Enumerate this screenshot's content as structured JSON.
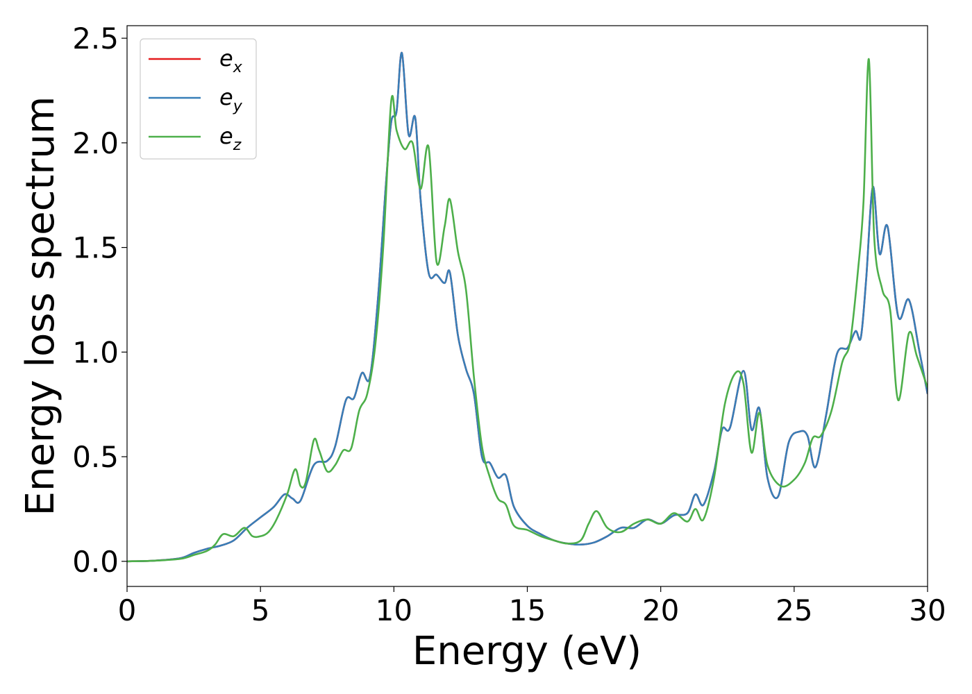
{
  "chart_data": {
    "type": "line",
    "xlabel": "Energy (eV)",
    "ylabel": "Energy loss spectrum",
    "xlim": [
      0,
      30
    ],
    "ylim": [
      -0.12,
      2.56
    ],
    "xticks": [
      0,
      5,
      10,
      15,
      20,
      25,
      30
    ],
    "xtick_labels": [
      "0",
      "5",
      "10",
      "15",
      "20",
      "25",
      "30"
    ],
    "yticks": [
      0.0,
      0.5,
      1.0,
      1.5,
      2.0,
      2.5
    ],
    "ytick_labels": [
      "0.0",
      "0.5",
      "1.0",
      "1.5",
      "2.0",
      "2.5"
    ],
    "grid": false,
    "legend_position": "top-left",
    "series": [
      {
        "name": "e",
        "sub": "x",
        "color": "#e41a1c",
        "x": [
          0,
          1,
          2,
          2.5,
          3,
          3.5,
          4,
          4.5,
          5,
          5.5,
          5.9,
          6.2,
          6.5,
          7,
          7.5,
          7.8,
          8.2,
          8.5,
          8.8,
          9.1,
          9.4,
          9.7,
          9.9,
          10.1,
          10.3,
          10.55,
          10.8,
          11,
          11.3,
          11.6,
          11.9,
          12.1,
          12.4,
          12.7,
          13,
          13.3,
          13.6,
          13.9,
          14.2,
          14.5,
          15,
          15.5,
          16,
          16.5,
          17,
          17.5,
          18,
          18.5,
          19,
          19.5,
          20,
          20.5,
          21,
          21.3,
          21.6,
          22,
          22.3,
          22.6,
          23.1,
          23.4,
          23.7,
          24,
          24.4,
          24.8,
          25.2,
          25.5,
          25.8,
          26.2,
          26.6,
          27,
          27.3,
          27.5,
          27.7,
          27.95,
          28.2,
          28.5,
          28.9,
          29.3,
          29.7,
          30
        ],
        "y": [
          0,
          0.003,
          0.015,
          0.04,
          0.06,
          0.075,
          0.1,
          0.16,
          0.21,
          0.26,
          0.32,
          0.3,
          0.29,
          0.46,
          0.48,
          0.55,
          0.77,
          0.78,
          0.9,
          0.88,
          1.25,
          1.8,
          2.1,
          2.15,
          2.43,
          2.04,
          2.12,
          1.73,
          1.38,
          1.37,
          1.33,
          1.38,
          1.08,
          0.92,
          0.8,
          0.5,
          0.47,
          0.4,
          0.41,
          0.26,
          0.17,
          0.13,
          0.1,
          0.085,
          0.08,
          0.09,
          0.12,
          0.16,
          0.16,
          0.2,
          0.18,
          0.22,
          0.23,
          0.32,
          0.27,
          0.43,
          0.63,
          0.64,
          0.91,
          0.63,
          0.73,
          0.4,
          0.31,
          0.57,
          0.62,
          0.6,
          0.45,
          0.7,
          0.99,
          1.02,
          1.1,
          1.07,
          1.35,
          1.79,
          1.47,
          1.6,
          1.17,
          1.25,
          1.0,
          0.8
        ]
      },
      {
        "name": "e",
        "sub": "y",
        "color": "#377eb8",
        "x": [
          0,
          1,
          2,
          2.5,
          3,
          3.5,
          4,
          4.5,
          5,
          5.5,
          5.9,
          6.2,
          6.5,
          7,
          7.5,
          7.8,
          8.2,
          8.5,
          8.8,
          9.1,
          9.4,
          9.7,
          9.9,
          10.1,
          10.3,
          10.55,
          10.8,
          11,
          11.3,
          11.6,
          11.9,
          12.1,
          12.4,
          12.7,
          13,
          13.3,
          13.6,
          13.9,
          14.2,
          14.5,
          15,
          15.5,
          16,
          16.5,
          17,
          17.5,
          18,
          18.5,
          19,
          19.5,
          20,
          20.5,
          21,
          21.3,
          21.6,
          22,
          22.3,
          22.6,
          23.1,
          23.4,
          23.7,
          24,
          24.4,
          24.8,
          25.2,
          25.5,
          25.8,
          26.2,
          26.6,
          27,
          27.3,
          27.5,
          27.7,
          27.95,
          28.2,
          28.5,
          28.9,
          29.3,
          29.7,
          30
        ],
        "y": [
          0,
          0.003,
          0.015,
          0.04,
          0.06,
          0.075,
          0.1,
          0.16,
          0.21,
          0.26,
          0.32,
          0.3,
          0.29,
          0.46,
          0.48,
          0.55,
          0.77,
          0.78,
          0.9,
          0.88,
          1.25,
          1.8,
          2.1,
          2.15,
          2.43,
          2.04,
          2.12,
          1.73,
          1.38,
          1.37,
          1.33,
          1.38,
          1.08,
          0.92,
          0.8,
          0.5,
          0.47,
          0.4,
          0.41,
          0.26,
          0.17,
          0.13,
          0.1,
          0.085,
          0.08,
          0.09,
          0.12,
          0.16,
          0.16,
          0.2,
          0.18,
          0.22,
          0.23,
          0.32,
          0.27,
          0.43,
          0.63,
          0.64,
          0.91,
          0.63,
          0.73,
          0.4,
          0.31,
          0.57,
          0.62,
          0.6,
          0.45,
          0.7,
          0.99,
          1.02,
          1.1,
          1.07,
          1.35,
          1.79,
          1.47,
          1.6,
          1.17,
          1.25,
          1.0,
          0.8
        ]
      },
      {
        "name": "e",
        "sub": "z",
        "color": "#4daf4a",
        "x": [
          0,
          1,
          2,
          2.5,
          3,
          3.3,
          3.6,
          4,
          4.4,
          4.7,
          5,
          5.3,
          5.6,
          6,
          6.3,
          6.5,
          6.7,
          7,
          7.2,
          7.5,
          7.8,
          8.1,
          8.4,
          8.7,
          9,
          9.3,
          9.6,
          9.9,
          10.1,
          10.4,
          10.7,
          11,
          11.3,
          11.6,
          11.9,
          12.1,
          12.4,
          12.7,
          13,
          13.3,
          13.6,
          13.9,
          14.2,
          14.5,
          15,
          15.5,
          16,
          16.5,
          17,
          17.3,
          17.6,
          18,
          18.5,
          19,
          19.5,
          20,
          20.5,
          21,
          21.3,
          21.6,
          22,
          22.4,
          22.8,
          23.1,
          23.4,
          23.7,
          24,
          24.5,
          25,
          25.4,
          25.7,
          26,
          26.4,
          26.8,
          27.1,
          27.4,
          27.6,
          27.8,
          28,
          28.3,
          28.6,
          28.9,
          29.3,
          29.6,
          30
        ],
        "y": [
          0,
          0.003,
          0.012,
          0.03,
          0.05,
          0.08,
          0.13,
          0.12,
          0.16,
          0.12,
          0.12,
          0.14,
          0.2,
          0.32,
          0.44,
          0.36,
          0.38,
          0.58,
          0.53,
          0.43,
          0.46,
          0.53,
          0.54,
          0.72,
          0.8,
          1.03,
          1.5,
          2.2,
          2.06,
          1.97,
          2.0,
          1.78,
          1.98,
          1.43,
          1.6,
          1.73,
          1.48,
          1.3,
          0.88,
          0.55,
          0.4,
          0.3,
          0.27,
          0.17,
          0.15,
          0.12,
          0.1,
          0.085,
          0.1,
          0.18,
          0.24,
          0.16,
          0.14,
          0.18,
          0.2,
          0.18,
          0.23,
          0.19,
          0.25,
          0.2,
          0.4,
          0.75,
          0.9,
          0.85,
          0.52,
          0.71,
          0.46,
          0.36,
          0.39,
          0.47,
          0.59,
          0.6,
          0.72,
          0.95,
          1.05,
          1.4,
          1.72,
          2.4,
          1.55,
          1.3,
          1.2,
          0.77,
          1.09,
          0.98,
          0.83
        ]
      }
    ]
  }
}
